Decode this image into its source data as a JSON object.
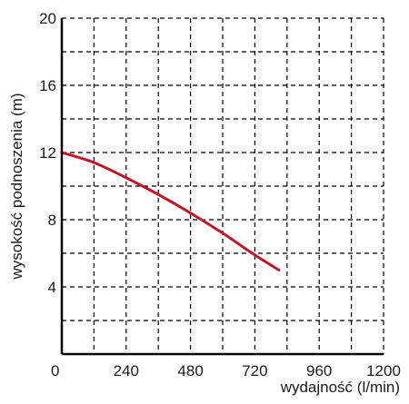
{
  "chart_data": {
    "type": "line",
    "xlabel": "wydajność (l/min)",
    "ylabel": "wysokość podnoszenia (m)",
    "xlim": [
      0,
      1200
    ],
    "ylim": [
      0,
      20
    ],
    "x_ticks": [
      0,
      240,
      480,
      720,
      960,
      1200
    ],
    "y_ticks": [
      4,
      8,
      12,
      16,
      20
    ],
    "x_grid_step": 120,
    "y_grid_step": 2,
    "grid": "dashed",
    "series": [
      {
        "color": "#c0142a",
        "x": [
          0,
          120,
          240,
          360,
          480,
          600,
          720,
          810
        ],
        "y": [
          12,
          11.4,
          10.5,
          9.5,
          8.4,
          7.2,
          5.9,
          5.0
        ]
      }
    ]
  }
}
